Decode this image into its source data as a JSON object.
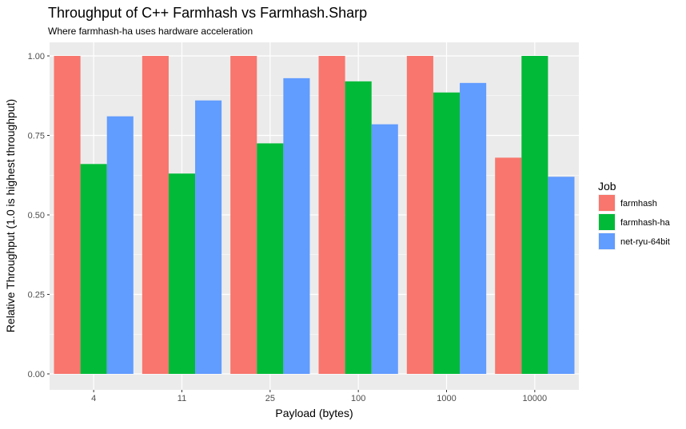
{
  "chart_data": {
    "type": "bar",
    "title": "Throughput of C++ Farmhash vs Farmhash.Sharp",
    "subtitle": "Where farmhash-ha uses hardware acceleration",
    "xlabel": "Payload (bytes)",
    "ylabel": "Relative Throughput (1.0 is highest throughput)",
    "categories": [
      "4",
      "11",
      "25",
      "100",
      "1000",
      "10000"
    ],
    "ylim": [
      0,
      1
    ],
    "y_ticks": [
      "0.00",
      "0.25",
      "0.50",
      "0.75",
      "1.00"
    ],
    "y_tick_values": [
      0,
      0.25,
      0.5,
      0.75,
      1.0
    ],
    "grid": true,
    "legend": {
      "title": "Job",
      "placement": "right"
    },
    "series": [
      {
        "name": "farmhash",
        "color": "#F8766D",
        "values": [
          1.0,
          1.0,
          1.0,
          1.0,
          1.0,
          0.68
        ]
      },
      {
        "name": "farmhash-ha",
        "color": "#00BA38",
        "values": [
          0.66,
          0.63,
          0.725,
          0.92,
          0.885,
          1.0
        ]
      },
      {
        "name": "net-ryu-64bit",
        "color": "#619CFF",
        "values": [
          0.81,
          0.86,
          0.93,
          0.785,
          0.915,
          0.62
        ]
      }
    ],
    "panel_background": "#EBEBEB",
    "grid_color": "#FFFFFF"
  }
}
